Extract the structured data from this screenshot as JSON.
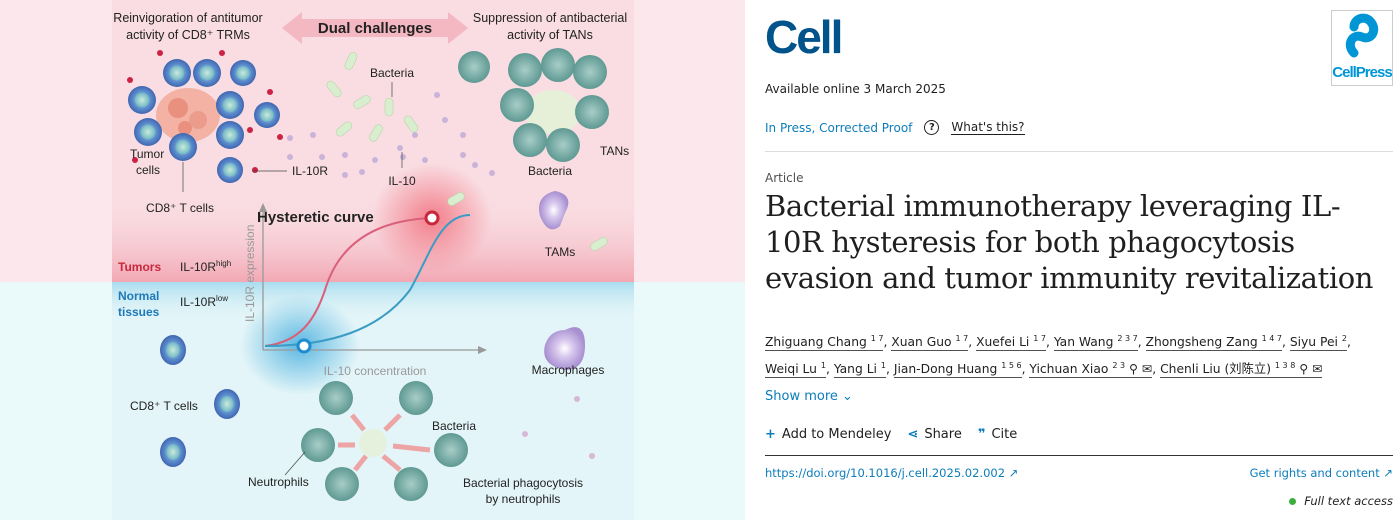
{
  "figure": {
    "left_heading_1": "Reinvigoration of antitumor",
    "left_heading_2": "activity of CD8⁺ TRMs",
    "center_heading": "Dual challenges",
    "right_heading_1": "Suppression of antibacterial",
    "right_heading_2": "activity of TANs",
    "labels": {
      "bacteria_top": "Bacteria",
      "tumor_cells_1": "Tumor",
      "tumor_cells_2": "cells",
      "il10r": "IL-10R",
      "il10": "IL-10",
      "cd8_top": "CD8⁺ T cells",
      "bacteria_tan": "Bacteria",
      "tans": "TANs",
      "tams": "TAMs",
      "hysteretic": "Hysteretic curve",
      "tumors": "Tumors",
      "il10r_high": "IL-10R",
      "high_sup": "high",
      "normal_1": "Normal",
      "normal_2": "tissues",
      "il10r_low": "IL-10R",
      "low_sup": "low",
      "y_axis": "IL-10R expression",
      "x_axis": "IL-10 concentration",
      "macrophages": "Macrophages",
      "cd8_bottom": "CD8⁺ T cells",
      "bacteria_bottom": "Bacteria",
      "neutrophils": "Neutrophils",
      "phago_1": "Bacterial phagocytosis",
      "phago_2": "by neutrophils"
    },
    "colors": {
      "tumor_pink": "#f9dde2",
      "normal_blue": "#e3f5f8",
      "tumors_label": "#c8283c",
      "normal_label": "#1d79b8",
      "red_curve": "#d9607a",
      "blue_curve": "#3a9cc4"
    }
  },
  "journal": {
    "logo": "Cell",
    "publisher_logo": "CellPress"
  },
  "available": "Available online 3 March 2025",
  "status": "In Press, Corrected Proof",
  "help_icon": "question-circle-icon",
  "whats_this": "What's this?",
  "article_type": "Article",
  "title": "Bacterial immunotherapy leveraging IL-10R hysteresis for both phagocytosis evasion and tumor immunity revitalization",
  "authors": [
    {
      "name": "Zhiguang Chang",
      "aff": "1 7"
    },
    {
      "name": "Xuan Guo",
      "aff": "1 7"
    },
    {
      "name": "Xuefei Li",
      "aff": "1 7"
    },
    {
      "name": "Yan Wang",
      "aff": "2 3 7"
    },
    {
      "name": "Zhongsheng Zang",
      "aff": "1 4 7"
    },
    {
      "name": "Siyu Pei",
      "aff": "2"
    },
    {
      "name": "Weiqi Lu",
      "aff": "1"
    },
    {
      "name": "Yang Li",
      "aff": "1"
    },
    {
      "name": "Jian-Dong Huang",
      "aff": "1 5 6"
    },
    {
      "name": "Yichuan Xiao",
      "aff": "2 3",
      "icons": "person-icon mail-icon"
    },
    {
      "name": "Chenli Liu (刘陈立)",
      "aff": "1 3 8",
      "icons": "person-icon mail-icon"
    }
  ],
  "show_more": "Show more",
  "actions": {
    "mendeley": "Add to Mendeley",
    "share": "Share",
    "cite": "Cite"
  },
  "doi": "https://doi.org/10.1016/j.cell.2025.02.002",
  "rights": "Get rights and content",
  "access": "Full text access",
  "access_color": "#3cae3c"
}
